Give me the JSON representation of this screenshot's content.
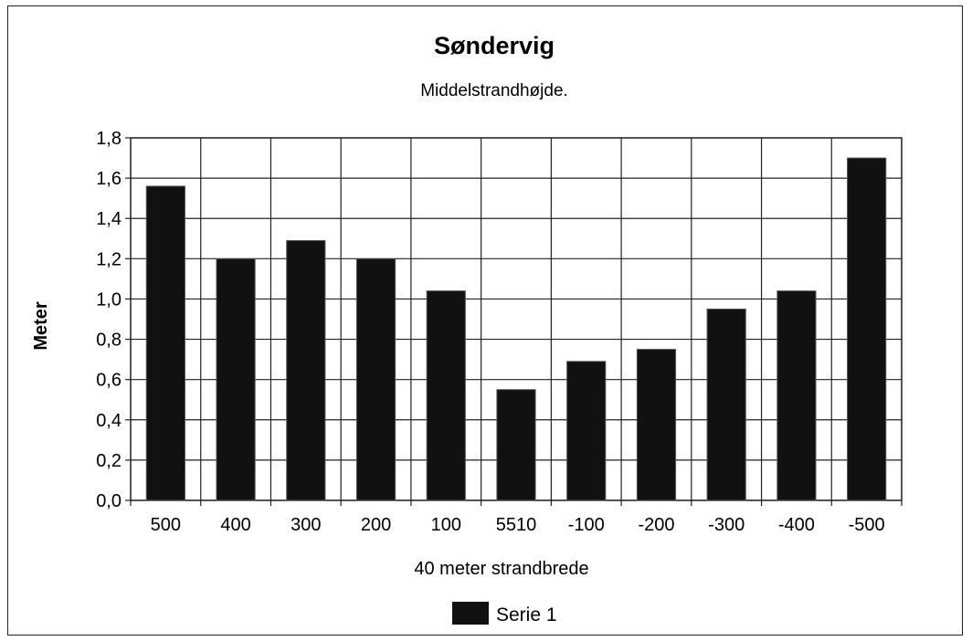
{
  "chart_data": {
    "type": "bar",
    "title": "Søndervig",
    "subtitle": "Middelstrandhøjde.",
    "xlabel": "40 meter strandbrede",
    "ylabel": "Meter",
    "categories": [
      "500",
      "400",
      "300",
      "200",
      "100",
      "5510",
      "-100",
      "-200",
      "-300",
      "-400",
      "-500"
    ],
    "series": [
      {
        "name": "Serie 1",
        "values": [
          1.56,
          1.2,
          1.29,
          1.2,
          1.04,
          0.55,
          0.69,
          0.75,
          0.95,
          1.04,
          1.7
        ]
      }
    ],
    "ylim": [
      0,
      1.8
    ],
    "ytick_step": 0.2,
    "ytick_labels": [
      "0,0",
      "0,2",
      "0,4",
      "0,6",
      "0,8",
      "1,0",
      "1,2",
      "1,4",
      "1,6",
      "1,8"
    ],
    "grid": true,
    "legend_position": "bottom-center",
    "bar_color": "#111111"
  }
}
